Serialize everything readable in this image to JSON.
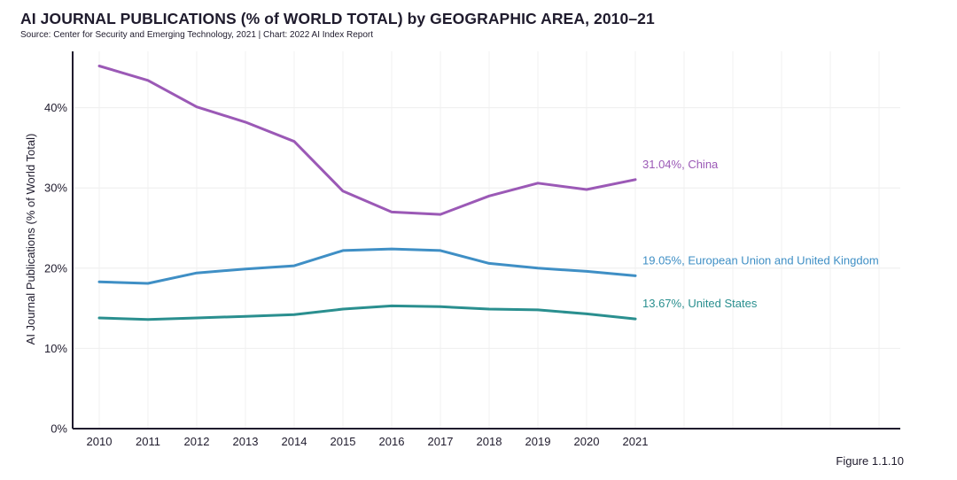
{
  "header": {
    "title": "AI JOURNAL PUBLICATIONS (% of WORLD TOTAL) by GEOGRAPHIC AREA, 2010–21",
    "source": "Source: Center for Security and Emerging Technology, 2021 | Chart: 2022 AI Index Report"
  },
  "footer": {
    "figure": "Figure 1.1.10"
  },
  "chart_data": {
    "type": "line",
    "title": "AI JOURNAL PUBLICATIONS (% of WORLD TOTAL) by GEOGRAPHIC AREA, 2010–21",
    "subtitle": "Source: Center for Security and Emerging Technology, 2021 | Chart: 2022 AI Index Report",
    "xlabel": "",
    "ylabel": "AI Journal Publications (% of World Total)",
    "x": [
      "2010",
      "2011",
      "2012",
      "2013",
      "2014",
      "2015",
      "2016",
      "2017",
      "2018",
      "2019",
      "2020",
      "2021"
    ],
    "ylim": [
      0,
      45
    ],
    "yticks": [
      0,
      10,
      20,
      30,
      40
    ],
    "ytick_labels": [
      "0%",
      "10%",
      "20%",
      "30%",
      "40%"
    ],
    "grid": true,
    "series": [
      {
        "name": "China",
        "color": "#9b59b6",
        "end_label": "31.04%, China",
        "values": [
          45.2,
          43.4,
          40.1,
          38.2,
          35.8,
          29.6,
          27.0,
          26.7,
          29.0,
          30.6,
          29.8,
          31.04
        ]
      },
      {
        "name": "European Union and United Kingdom",
        "color": "#3f8fc5",
        "end_label": "19.05%, European Union and United Kingdom",
        "values": [
          18.3,
          18.1,
          19.4,
          19.9,
          20.3,
          22.2,
          22.4,
          22.2,
          20.6,
          20.0,
          19.6,
          19.05
        ]
      },
      {
        "name": "United States",
        "color": "#2a8f8f",
        "end_label": "13.67%, United States",
        "values": [
          13.8,
          13.6,
          13.8,
          14.0,
          14.2,
          14.9,
          15.3,
          15.2,
          14.9,
          14.8,
          14.3,
          13.67
        ]
      }
    ]
  }
}
